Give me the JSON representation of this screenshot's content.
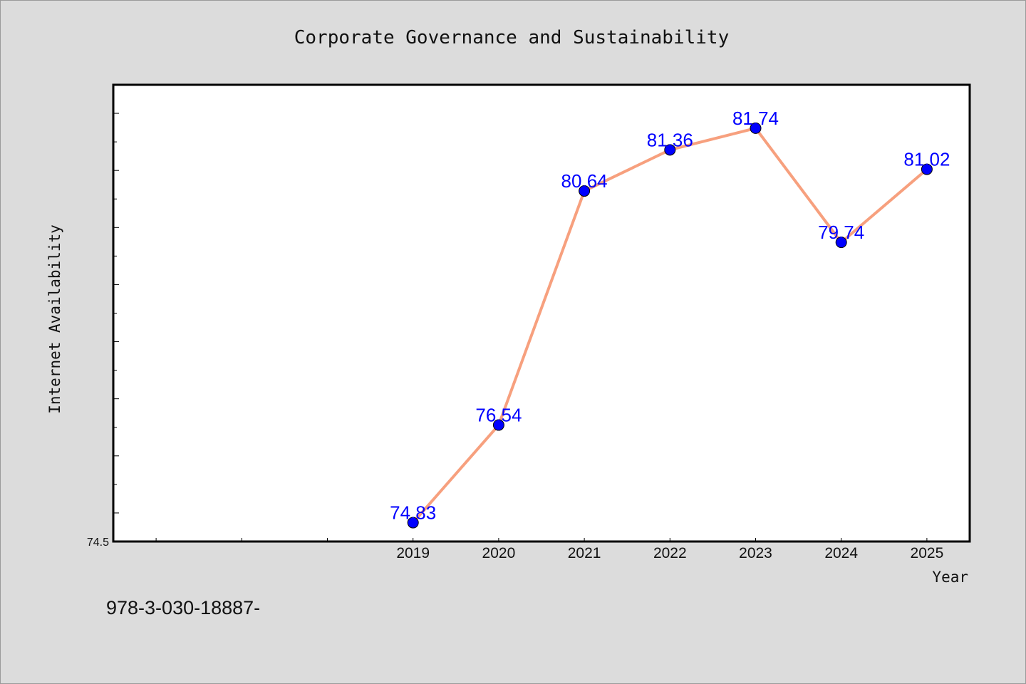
{
  "footer_text": "978-3-030-18887-",
  "chart_data": {
    "type": "line",
    "title": "Corporate Governance and Sustainability",
    "xlabel": "Year",
    "ylabel": "Internet Availability",
    "x": [
      2019,
      2020,
      2021,
      2022,
      2023,
      2024,
      2025
    ],
    "series": [
      {
        "values": [
          74.83,
          76.54,
          80.64,
          81.36,
          81.74,
          79.74,
          81.02
        ],
        "labels": [
          "74.83",
          "76.54",
          "80.64",
          "81.36",
          "81.74",
          "79.74",
          "81.02"
        ]
      }
    ],
    "xlim": [
      2015.5,
      2025.5
    ],
    "ylim": [
      74.5,
      82.5
    ],
    "ymin_tick_label": "74.5",
    "grid": false,
    "line_color": "#f7a07e",
    "marker_color": "#0000ff",
    "label_color": "#0000ff",
    "plot_background": "#ffffff",
    "page_background": "#dcdcdc"
  }
}
